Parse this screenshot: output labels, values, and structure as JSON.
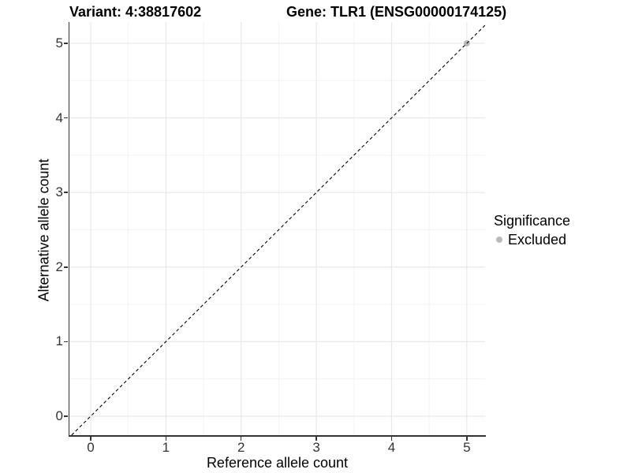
{
  "chart_data": {
    "type": "scatter",
    "title_left": "Variant: 4:38817602",
    "title_right": "Gene: TLR1 (ENSG00000174125)",
    "xlabel": "Reference allele count",
    "ylabel": "Alternative allele count",
    "x_ticks": [
      0,
      1,
      2,
      3,
      4,
      5
    ],
    "y_ticks": [
      0,
      1,
      2,
      3,
      4,
      5
    ],
    "xlim": [
      -0.283,
      5.243
    ],
    "ylim": [
      -0.254,
      5.285
    ],
    "minor_step": 0.5,
    "grid": "major+minor",
    "background_color": "#ffffff",
    "grid_major_color": "#e8e8e8",
    "grid_minor_color": "#f3f3f3",
    "axis_color": "#333333",
    "reference_line": {
      "kind": "identity y=x",
      "style": "dashed",
      "color": "#000000"
    },
    "series": [
      {
        "name": "Excluded",
        "color": "#b9b9b9",
        "point_radius": 4,
        "points": [
          [
            5,
            5
          ]
        ]
      }
    ],
    "legend": {
      "title": "Significance",
      "position": "right",
      "entries": [
        {
          "label": "Excluded",
          "color": "#b9b9b9"
        }
      ]
    }
  }
}
